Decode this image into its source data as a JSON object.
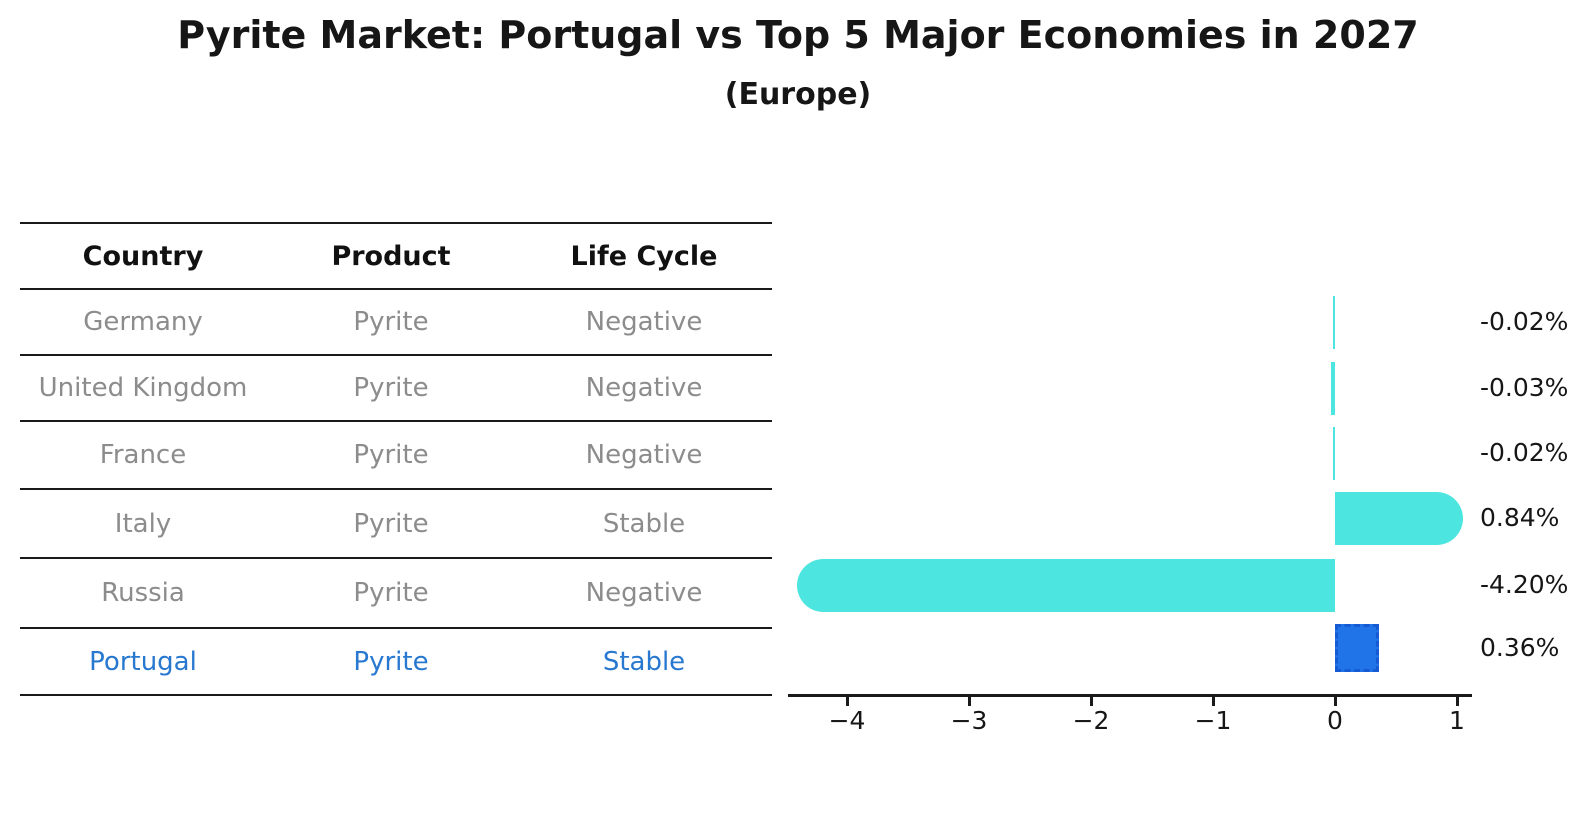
{
  "title": "Pyrite Market: Portugal vs Top 5 Major Economies in 2027",
  "subtitle": "(Europe)",
  "table": {
    "headers": [
      "Country",
      "Product",
      "Life Cycle"
    ],
    "rows": [
      {
        "country": "Germany",
        "product": "Pyrite",
        "life_cycle": "Negative",
        "highlight": false
      },
      {
        "country": "United Kingdom",
        "product": "Pyrite",
        "life_cycle": "Negative",
        "highlight": false
      },
      {
        "country": "France",
        "product": "Pyrite",
        "life_cycle": "Negative",
        "highlight": false
      },
      {
        "country": "Italy",
        "product": "Pyrite",
        "life_cycle": "Stable",
        "highlight": false
      },
      {
        "country": "Russia",
        "product": "Pyrite",
        "life_cycle": "Negative",
        "highlight": false
      },
      {
        "country": "Portugal",
        "product": "Pyrite",
        "life_cycle": "Stable",
        "highlight": true
      }
    ]
  },
  "chart_data": {
    "type": "bar",
    "orientation": "horizontal",
    "categories": [
      "Germany",
      "United Kingdom",
      "France",
      "Italy",
      "Russia",
      "Portugal"
    ],
    "values": [
      -0.02,
      -0.03,
      -0.02,
      0.84,
      -4.2,
      0.36
    ],
    "value_labels": [
      "-0.02%",
      "-0.03%",
      "-0.02%",
      "0.84%",
      "-4.20%",
      "0.36%"
    ],
    "x_ticks": [
      -4,
      -3,
      -2,
      -1,
      0,
      1
    ],
    "xlim": [
      -4.48,
      1.12
    ],
    "grid": false,
    "legend": "none",
    "bar_color": "#4DE5E0",
    "highlight_color": "#2173E8",
    "highlight_index": 5,
    "highlight_country": "Portugal"
  },
  "colors": {
    "bar_cyan": "#4DE5E0",
    "bar_blue": "#2173E8",
    "bar_blue_border": "#155BD4",
    "table_text_gray": "#8c8c8c",
    "highlight_text_blue": "#2878D0",
    "text_black": "#161616"
  }
}
